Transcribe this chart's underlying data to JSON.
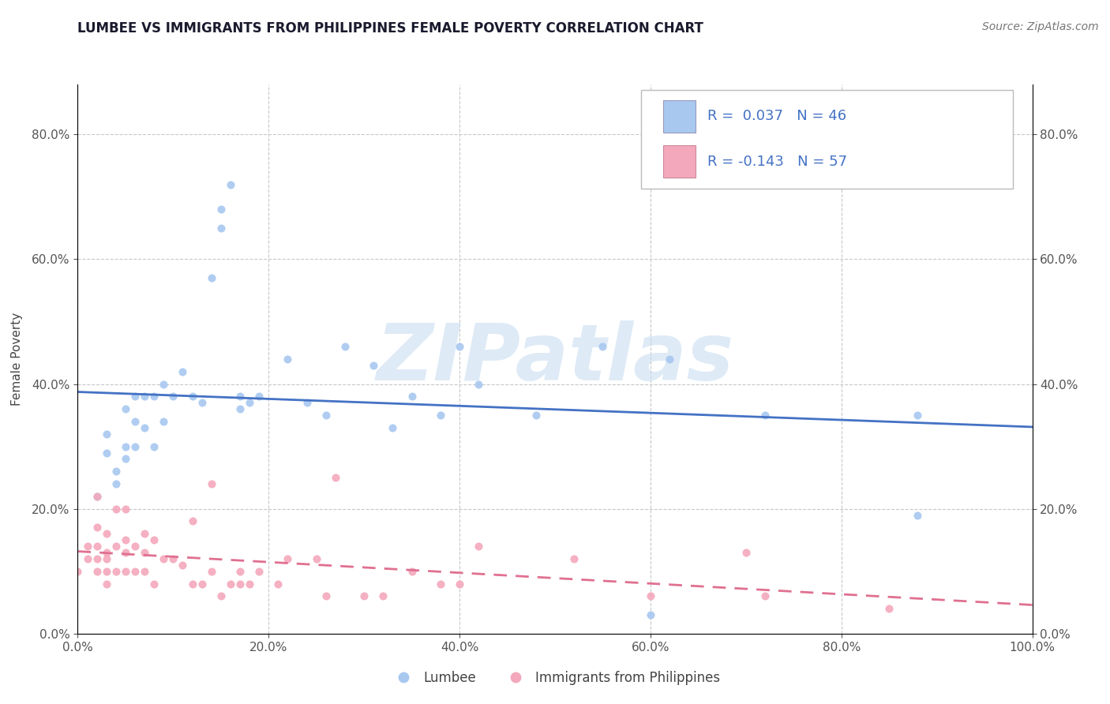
{
  "title": "LUMBEE VS IMMIGRANTS FROM PHILIPPINES FEMALE POVERTY CORRELATION CHART",
  "source": "Source: ZipAtlas.com",
  "ylabel": "Female Poverty",
  "lumbee_color": "#A8C8F0",
  "philippines_color": "#F4A8BC",
  "lumbee_line_color": "#4472C4",
  "philippines_line_color": "#E07090",
  "background_color": "#FFFFFF",
  "grid_color": "#C8C8C8",
  "R_lumbee": 0.037,
  "N_lumbee": 46,
  "R_philippines": -0.143,
  "N_philippines": 57,
  "xlim": [
    0.0,
    1.0
  ],
  "ylim": [
    0.0,
    0.88
  ],
  "xticks": [
    0.0,
    0.2,
    0.4,
    0.6,
    0.8,
    1.0
  ],
  "yticks": [
    0.0,
    0.2,
    0.4,
    0.6,
    0.8
  ],
  "lumbee_x": [
    0.02,
    0.03,
    0.03,
    0.04,
    0.04,
    0.05,
    0.05,
    0.05,
    0.06,
    0.06,
    0.06,
    0.07,
    0.07,
    0.08,
    0.08,
    0.09,
    0.09,
    0.1,
    0.11,
    0.12,
    0.13,
    0.14,
    0.15,
    0.15,
    0.16,
    0.17,
    0.17,
    0.18,
    0.19,
    0.22,
    0.24,
    0.26,
    0.28,
    0.31,
    0.33,
    0.35,
    0.38,
    0.4,
    0.42,
    0.48,
    0.55,
    0.6,
    0.62,
    0.72,
    0.88,
    0.88
  ],
  "lumbee_y": [
    0.22,
    0.29,
    0.32,
    0.24,
    0.26,
    0.28,
    0.3,
    0.36,
    0.3,
    0.34,
    0.38,
    0.33,
    0.38,
    0.3,
    0.38,
    0.34,
    0.4,
    0.38,
    0.42,
    0.38,
    0.37,
    0.57,
    0.65,
    0.68,
    0.72,
    0.36,
    0.38,
    0.37,
    0.38,
    0.44,
    0.37,
    0.35,
    0.46,
    0.43,
    0.33,
    0.38,
    0.35,
    0.46,
    0.4,
    0.35,
    0.46,
    0.03,
    0.44,
    0.35,
    0.19,
    0.35
  ],
  "philippines_x": [
    0.0,
    0.01,
    0.01,
    0.02,
    0.02,
    0.02,
    0.02,
    0.02,
    0.03,
    0.03,
    0.03,
    0.03,
    0.03,
    0.04,
    0.04,
    0.04,
    0.05,
    0.05,
    0.05,
    0.05,
    0.06,
    0.06,
    0.07,
    0.07,
    0.07,
    0.08,
    0.08,
    0.09,
    0.1,
    0.11,
    0.12,
    0.12,
    0.13,
    0.14,
    0.14,
    0.15,
    0.16,
    0.17,
    0.17,
    0.18,
    0.19,
    0.21,
    0.22,
    0.25,
    0.26,
    0.27,
    0.3,
    0.32,
    0.35,
    0.38,
    0.4,
    0.42,
    0.52,
    0.6,
    0.7,
    0.72,
    0.85
  ],
  "philippines_y": [
    0.1,
    0.12,
    0.14,
    0.1,
    0.12,
    0.14,
    0.17,
    0.22,
    0.08,
    0.1,
    0.12,
    0.13,
    0.16,
    0.1,
    0.14,
    0.2,
    0.1,
    0.13,
    0.15,
    0.2,
    0.1,
    0.14,
    0.1,
    0.13,
    0.16,
    0.08,
    0.15,
    0.12,
    0.12,
    0.11,
    0.08,
    0.18,
    0.08,
    0.1,
    0.24,
    0.06,
    0.08,
    0.08,
    0.1,
    0.08,
    0.1,
    0.08,
    0.12,
    0.12,
    0.06,
    0.25,
    0.06,
    0.06,
    0.1,
    0.08,
    0.08,
    0.14,
    0.12,
    0.06,
    0.13,
    0.06,
    0.04
  ],
  "watermark": "ZIPatlas",
  "watermark_color": "#C8DCF0",
  "legend_label_lumbee": "Lumbee",
  "legend_label_philippines": "Immigrants from Philippines"
}
